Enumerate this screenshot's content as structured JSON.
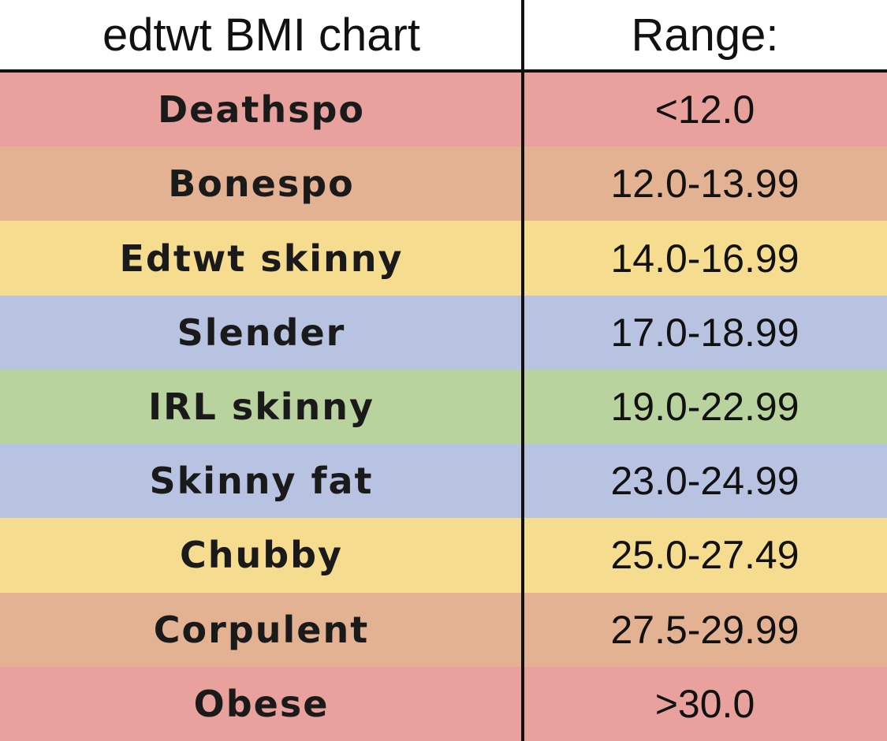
{
  "header": {
    "title": "edtwt BMI chart",
    "range": "Range:"
  },
  "table": {
    "rows": [
      [
        "Deathspo",
        "<12.0"
      ],
      [
        "Bonespo",
        "12.0-13.99"
      ],
      [
        "Edtwt skinny",
        "14.0-16.99"
      ],
      [
        "Slender",
        "17.0-18.99"
      ],
      [
        "IRL skinny",
        "19.0-22.99"
      ],
      [
        "Skinny fat",
        "23.0-24.99"
      ],
      [
        "Chubby",
        "25.0-27.49"
      ],
      [
        "Corpulent",
        "27.5-29.99"
      ],
      [
        "Obese",
        ">30.0"
      ]
    ],
    "row_colors": [
      "#e8a19d",
      "#e2b293",
      "#f5dc8f",
      "#b8c3e2",
      "#b9d39e",
      "#b8c3e2",
      "#f5dc8f",
      "#e2b293",
      "#e8a19d"
    ]
  }
}
